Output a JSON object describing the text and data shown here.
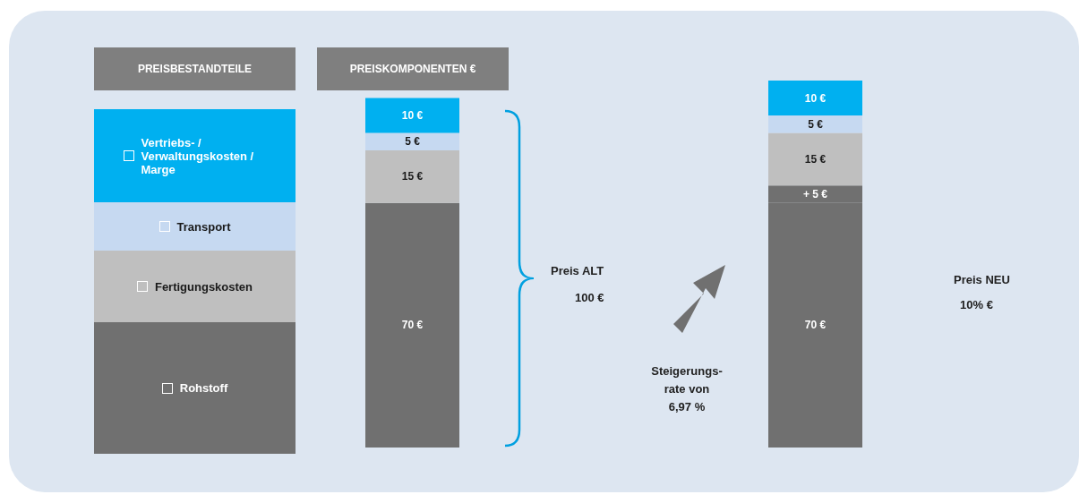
{
  "chart_data": {
    "type": "bar",
    "stacked": true,
    "legend": "left",
    "categories": [
      "Preis ALT",
      "Preis NEU"
    ],
    "series": [
      {
        "name": "Rohstoff",
        "color": "#707070",
        "values": [
          70,
          70
        ],
        "value_labels": [
          "70 €",
          "70 €"
        ]
      },
      {
        "color": "#707070",
        "values": [
          null,
          5
        ],
        "value_labels": [
          null,
          "+ 5 €"
        ]
      },
      {
        "name": "Fertigungskosten",
        "color": "#bfbfbf",
        "values": [
          15,
          15
        ],
        "value_labels": [
          "15 €",
          "15 €"
        ]
      },
      {
        "name": "Transport",
        "color": "#c6d9f1",
        "values": [
          5,
          5
        ],
        "value_labels": [
          "5 €",
          "5 €"
        ]
      },
      {
        "name": "Vertriebs- / Verwaltungskosten / Marge",
        "color": "#00b0f0",
        "values": [
          10,
          10
        ],
        "value_labels": [
          "10 €",
          "10 €"
        ]
      }
    ],
    "annotations": [
      "PREISBESTANDTEILE",
      "PREISKOMPONENTEN €",
      "100 €",
      "10% €",
      "Steigerungs-\nrate von\n6,97 %"
    ]
  }
}
